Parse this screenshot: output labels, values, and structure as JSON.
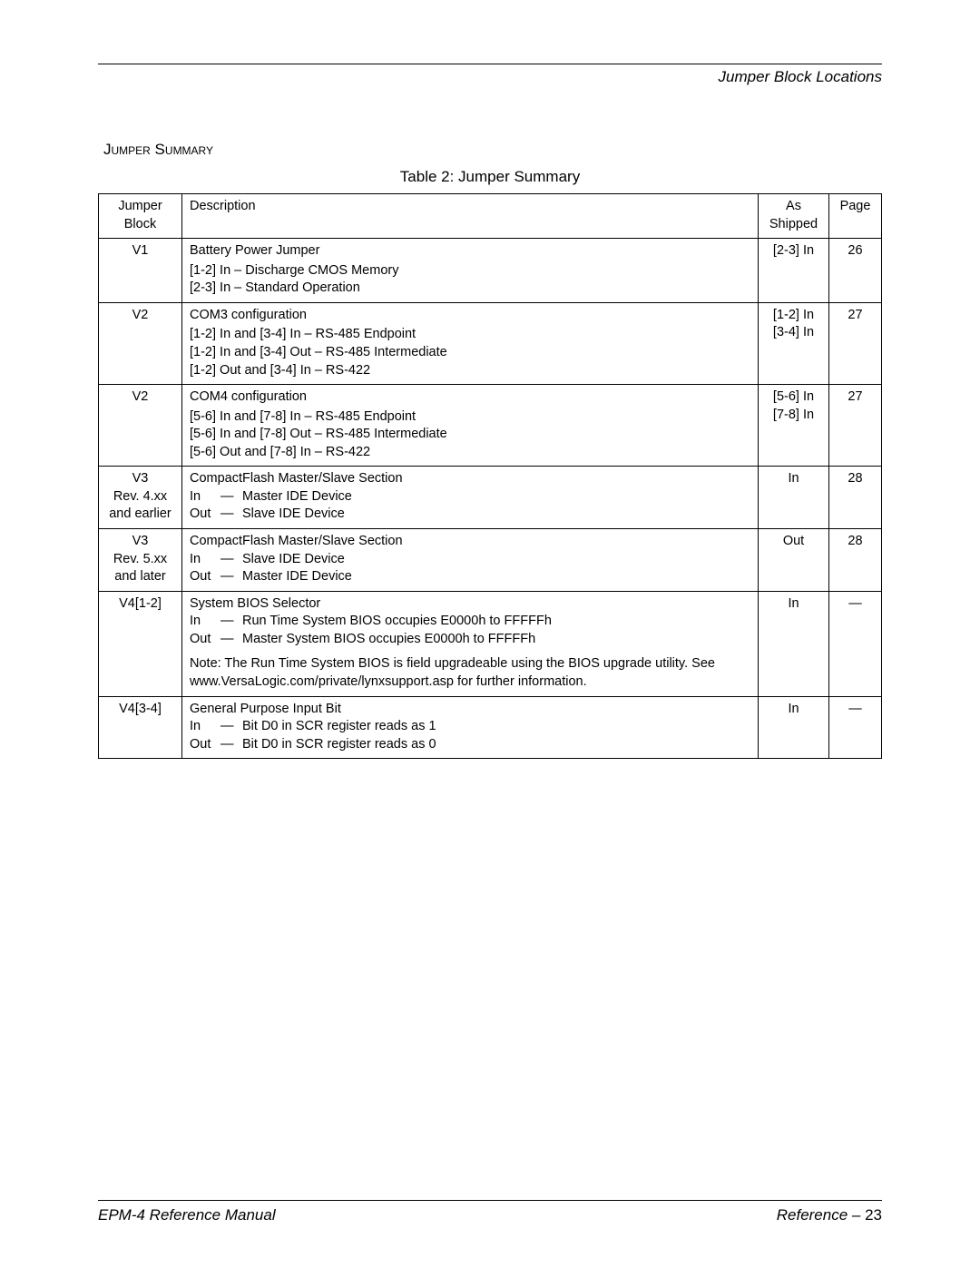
{
  "header": {
    "section_label": "Jumper Block Locations"
  },
  "section_title": "Jumper Summary",
  "table_caption": "Table 2: Jumper Summary",
  "columns": {
    "block": "Jumper\nBlock",
    "desc": "Description",
    "ship": "As\nShipped",
    "page": "Page"
  },
  "rows": [
    {
      "block": "V1",
      "desc_title": "Battery Power Jumper",
      "desc_lines": "[1-2] In – Discharge CMOS Memory\n[2-3] In – Standard Operation",
      "ship": "[2-3] In",
      "page": "26"
    },
    {
      "block": "V2",
      "desc_title": "COM3 configuration",
      "desc_lines": "[1-2] In and [3-4] In – RS-485 Endpoint\n[1-2] In and [3-4] Out – RS-485 Intermediate\n[1-2] Out and [3-4] In – RS-422",
      "ship": "[1-2] In\n[3-4] In",
      "page": "27"
    },
    {
      "block": "V2",
      "desc_title": "COM4 configuration",
      "desc_lines": "[5-6] In and [7-8] In – RS-485 Endpoint\n[5-6] In and [7-8] Out – RS-485 Intermediate\n[5-6] Out and [7-8] In – RS-422",
      "ship": "[5-6] In\n[7-8] In",
      "page": "27"
    },
    {
      "block": "V3\nRev. 4.xx\nand earlier",
      "desc_title": "CompactFlash Master/Slave Section",
      "inout": [
        {
          "tag": "In",
          "val": "Master IDE Device"
        },
        {
          "tag": "Out",
          "val": "Slave IDE Device"
        }
      ],
      "ship": "In",
      "page": "28"
    },
    {
      "block": "V3\nRev. 5.xx\nand later",
      "desc_title": "CompactFlash Master/Slave Section",
      "inout": [
        {
          "tag": "In",
          "val": "Slave IDE Device"
        },
        {
          "tag": "Out",
          "val": "Master IDE Device"
        }
      ],
      "ship": "Out",
      "page": "28"
    },
    {
      "block": "V4[1-2]",
      "desc_title": "System BIOS Selector",
      "inout": [
        {
          "tag": "In",
          "val": "Run Time System BIOS occupies E0000h to FFFFFh"
        },
        {
          "tag": "Out",
          "val": "Master System BIOS occupies E0000h to FFFFFh"
        }
      ],
      "note": "Note:  The Run Time System BIOS is field upgradeable using the BIOS upgrade utility. See www.VersaLogic.com/private/lynxsupport.asp for further information.",
      "ship": "In",
      "page": "—"
    },
    {
      "block": "V4[3-4]",
      "desc_title": "General Purpose Input Bit",
      "inout": [
        {
          "tag": "In",
          "val": "Bit D0 in SCR register reads as 1"
        },
        {
          "tag": "Out",
          "val": "Bit D0 in SCR register reads as 0"
        }
      ],
      "ship": "In",
      "page": "—"
    }
  ],
  "footer": {
    "left": "EPM-4 Reference Manual",
    "right_label": "Reference – ",
    "right_page": "23"
  },
  "dash": "—"
}
